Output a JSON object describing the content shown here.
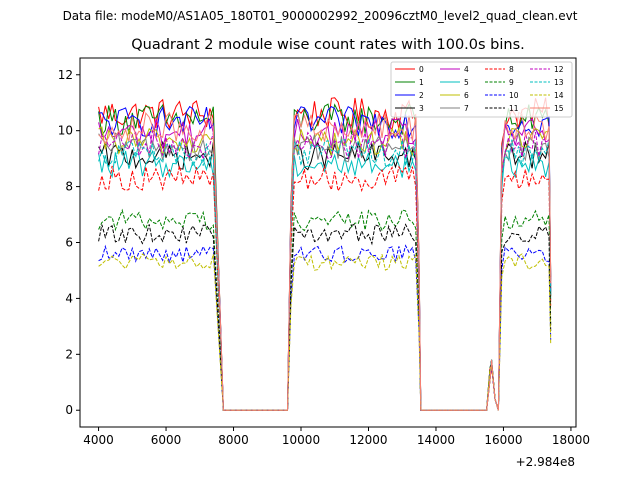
{
  "chart_data": {
    "type": "line",
    "suptitle": "Data file: modeM0/AS1A05_180T01_9000002992_20096cztM0_level2_quad_clean.evt",
    "title": "Quadrant 2 module wise count rates with 100.0s bins.",
    "xlabel": "",
    "ylabel": "",
    "x_offset_label": "+2.984e8",
    "xlim": [
      3450,
      18150
    ],
    "ylim": [
      -0.6,
      12.6
    ],
    "x_ticks": [
      4000,
      6000,
      8000,
      10000,
      12000,
      14000,
      16000,
      18000
    ],
    "x_tick_labels": [
      "4000",
      "6000",
      "8000",
      "10000",
      "12000",
      "14000",
      "16000",
      "18000"
    ],
    "y_ticks": [
      0,
      2,
      4,
      6,
      8,
      10,
      12
    ],
    "y_tick_labels": [
      "0",
      "2",
      "4",
      "6",
      "8",
      "10",
      "12"
    ],
    "grid": false,
    "legend_position": "top-right",
    "segments": [
      [
        4000,
        7500
      ],
      [
        9700,
        13500
      ],
      [
        15950,
        17400
      ]
    ],
    "gap_ranges": [
      [
        7500,
        9700
      ],
      [
        13500,
        15950
      ]
    ],
    "bump": {
      "start": 15500,
      "end": 15950,
      "peak_x": 15650,
      "peak_y": 2.0
    },
    "series": [
      {
        "name": "0",
        "color": "#ff0000",
        "dash": "solid",
        "level": 10.6,
        "color_key": "red"
      },
      {
        "name": "1",
        "color": "#008000",
        "dash": "solid",
        "level": 10.4,
        "color_key": "green"
      },
      {
        "name": "2",
        "color": "#0000ff",
        "dash": "solid",
        "level": 10.3,
        "color_key": "blue"
      },
      {
        "name": "3",
        "color": "#000000",
        "dash": "solid",
        "level": 9.1,
        "color_key": "black"
      },
      {
        "name": "4",
        "color": "#bf00bf",
        "dash": "solid",
        "level": 9.9,
        "color_key": "magenta"
      },
      {
        "name": "5",
        "color": "#00bfbf",
        "dash": "solid",
        "level": 8.8,
        "color_key": "cyan"
      },
      {
        "name": "6",
        "color": "#bfbf00",
        "dash": "solid",
        "level": 9.6,
        "color_key": "olive"
      },
      {
        "name": "7",
        "color": "#808080",
        "dash": "solid",
        "level": 9.4,
        "color_key": "gray"
      },
      {
        "name": "8",
        "color": "#ff0000",
        "dash": "dashed",
        "level": 8.3,
        "color_key": "red"
      },
      {
        "name": "9",
        "color": "#008000",
        "dash": "dashed",
        "level": 6.8,
        "color_key": "green"
      },
      {
        "name": "10",
        "color": "#0000ff",
        "dash": "dashed",
        "level": 5.6,
        "color_key": "blue"
      },
      {
        "name": "11",
        "color": "#000000",
        "dash": "dashed",
        "level": 6.3,
        "color_key": "black"
      },
      {
        "name": "12",
        "color": "#bf00bf",
        "dash": "dashed",
        "level": 9.5,
        "color_key": "magenta"
      },
      {
        "name": "13",
        "color": "#00bfbf",
        "dash": "dashed",
        "level": 9.2,
        "color_key": "cyan"
      },
      {
        "name": "14",
        "color": "#bfbf00",
        "dash": "dashed",
        "level": 5.3,
        "color_key": "olive"
      },
      {
        "name": "15",
        "color": "#fa8072",
        "dash": "solid",
        "level": 10.1,
        "color_key": "salmon"
      }
    ]
  }
}
